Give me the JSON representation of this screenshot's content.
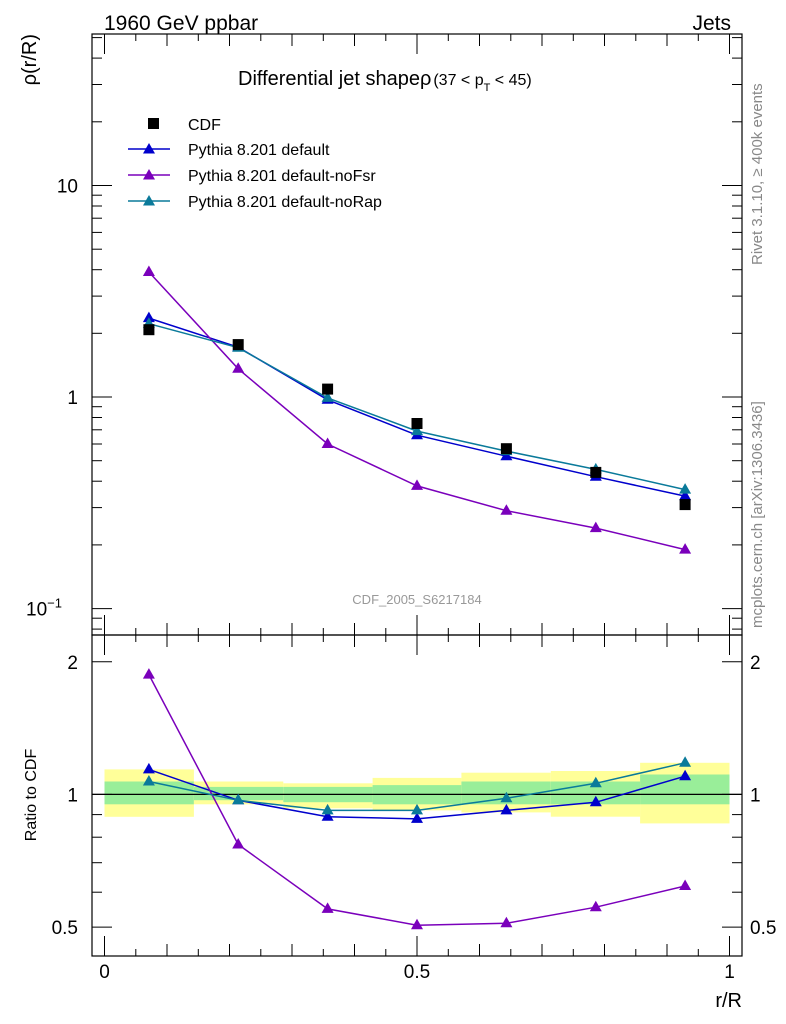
{
  "header": {
    "left": "1960 GeV ppbar",
    "right": "Jets"
  },
  "side_labels": {
    "rivet": "Rivet 3.1.10, ≥ 400k events",
    "mcplots": "mcplots.cern.ch [arXiv:1306.3436]"
  },
  "chart_data": [
    {
      "type": "line",
      "panel": "main",
      "title_main": "Differential jet shapeρ",
      "title_range": "(37 < p",
      "title_sub": "T",
      "title_range_end": " < 45)",
      "watermark": "CDF_2005_S6217184",
      "ylabel": "ρ(r/R)",
      "yscale": "log",
      "ylim": [
        0.075,
        52
      ],
      "xlim": [
        -0.02,
        1.02
      ],
      "yticks": [
        {
          "value": 0.1,
          "label": "10",
          "exp": "−1"
        },
        {
          "value": 1,
          "label": "1",
          "exp": ""
        },
        {
          "value": 10,
          "label": "10",
          "exp": ""
        }
      ],
      "legend": [
        {
          "label": "CDF",
          "color": "#000000",
          "marker": "square"
        },
        {
          "label": "Pythia 8.201 default",
          "color": "#0000cc",
          "marker": "triangle"
        },
        {
          "label": "Pythia 8.201 default-noFsr",
          "color": "#7a00bb",
          "marker": "triangle"
        },
        {
          "label": "Pythia 8.201 default-noRap",
          "color": "#0a7a9a",
          "marker": "triangle"
        }
      ],
      "x": [
        0.071,
        0.214,
        0.357,
        0.5,
        0.643,
        0.786,
        0.929
      ],
      "series": [
        {
          "name": "CDF",
          "values": [
            2.08,
            1.77,
            1.09,
            0.75,
            0.57,
            0.44,
            0.31
          ]
        },
        {
          "name": "Pythia 8.201 default",
          "values": [
            2.36,
            1.72,
            0.97,
            0.66,
            0.525,
            0.42,
            0.34
          ]
        },
        {
          "name": "Pythia 8.201 default-noFsr",
          "values": [
            3.9,
            1.36,
            0.6,
            0.38,
            0.29,
            0.24,
            0.19
          ]
        },
        {
          "name": "Pythia 8.201 default-noRap",
          "values": [
            2.22,
            1.71,
            0.99,
            0.69,
            0.555,
            0.455,
            0.365
          ]
        }
      ]
    },
    {
      "type": "line",
      "panel": "ratio",
      "ylabel": "Ratio to CDF",
      "xlabel": "r/R",
      "yscale": "log",
      "ylim": [
        0.43,
        2.3
      ],
      "xlim": [
        -0.02,
        1.02
      ],
      "yticks": [
        {
          "value": 0.5,
          "label": "0.5"
        },
        {
          "value": 1,
          "label": "1"
        },
        {
          "value": 2,
          "label": "2"
        }
      ],
      "xticks": [
        {
          "value": 0,
          "label": "0"
        },
        {
          "value": 0.5,
          "label": "0.5"
        },
        {
          "value": 1,
          "label": "1"
        }
      ],
      "bands": [
        {
          "x0": 0.0,
          "x1": 0.143,
          "yellow": [
            0.89,
            1.14
          ],
          "green": [
            0.95,
            1.07
          ]
        },
        {
          "x0": 0.143,
          "x1": 0.286,
          "yellow": [
            0.95,
            1.07
          ],
          "green": [
            0.97,
            1.04
          ]
        },
        {
          "x0": 0.286,
          "x1": 0.429,
          "yellow": [
            0.93,
            1.06
          ],
          "green": [
            0.96,
            1.04
          ]
        },
        {
          "x0": 0.429,
          "x1": 0.571,
          "yellow": [
            0.92,
            1.09
          ],
          "green": [
            0.95,
            1.05
          ]
        },
        {
          "x0": 0.571,
          "x1": 0.714,
          "yellow": [
            0.91,
            1.12
          ],
          "green": [
            0.95,
            1.07
          ]
        },
        {
          "x0": 0.714,
          "x1": 0.857,
          "yellow": [
            0.89,
            1.13
          ],
          "green": [
            0.95,
            1.07
          ]
        },
        {
          "x0": 0.857,
          "x1": 1.0,
          "yellow": [
            0.86,
            1.18
          ],
          "green": [
            0.95,
            1.11
          ]
        }
      ],
      "x": [
        0.071,
        0.214,
        0.357,
        0.5,
        0.643,
        0.786,
        0.929
      ],
      "series": [
        {
          "name": "Pythia 8.201 default",
          "values": [
            1.14,
            0.97,
            0.89,
            0.88,
            0.92,
            0.96,
            1.1
          ]
        },
        {
          "name": "Pythia 8.201 default-noFsr",
          "values": [
            1.87,
            0.77,
            0.55,
            0.505,
            0.51,
            0.555,
            0.62
          ]
        },
        {
          "name": "Pythia 8.201 default-noRap",
          "values": [
            1.07,
            0.97,
            0.92,
            0.92,
            0.98,
            1.06,
            1.18
          ]
        }
      ]
    }
  ]
}
